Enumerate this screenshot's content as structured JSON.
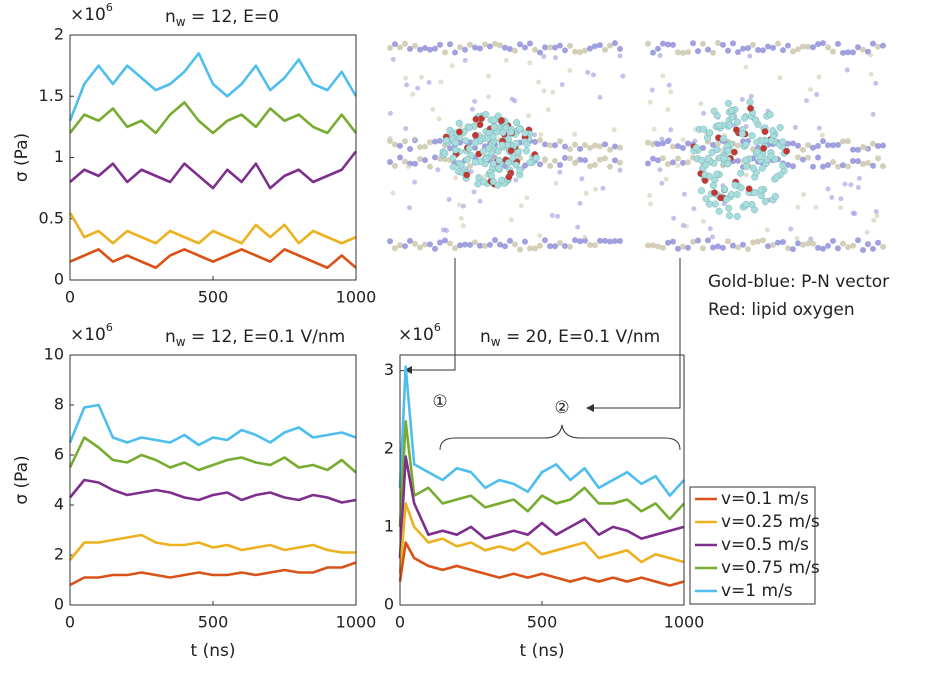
{
  "chart_data": [
    {
      "type": "line",
      "title": [
        "n",
        "w",
        " = 12, E=0"
      ],
      "y_multiplier": [
        "×10",
        "6"
      ],
      "ylabel": "σ (Pa)",
      "x": [
        0,
        50,
        100,
        150,
        200,
        250,
        300,
        350,
        400,
        450,
        500,
        550,
        600,
        650,
        700,
        750,
        800,
        850,
        900,
        950,
        1000
      ],
      "xlim": [
        0,
        1000
      ],
      "xticks": [
        0,
        500,
        1000
      ],
      "ylim": [
        0,
        2
      ],
      "yticks": [
        0,
        0.5,
        1,
        1.5,
        2
      ],
      "series": [
        {
          "color": "#4dbeee",
          "values": [
            1.3,
            1.6,
            1.75,
            1.6,
            1.75,
            1.65,
            1.55,
            1.6,
            1.7,
            1.85,
            1.6,
            1.5,
            1.6,
            1.75,
            1.55,
            1.65,
            1.8,
            1.6,
            1.55,
            1.7,
            1.5
          ]
        },
        {
          "color": "#77ac30",
          "values": [
            1.2,
            1.35,
            1.3,
            1.4,
            1.25,
            1.3,
            1.2,
            1.35,
            1.45,
            1.3,
            1.2,
            1.3,
            1.35,
            1.25,
            1.4,
            1.3,
            1.35,
            1.25,
            1.2,
            1.35,
            1.2
          ]
        },
        {
          "color": "#7e2f8e",
          "values": [
            0.8,
            0.9,
            0.85,
            0.95,
            0.8,
            0.9,
            0.85,
            0.8,
            0.95,
            0.85,
            0.75,
            0.9,
            0.8,
            0.95,
            0.75,
            0.85,
            0.9,
            0.8,
            0.85,
            0.9,
            1.05
          ]
        },
        {
          "color": "#edb120",
          "values": [
            0.55,
            0.35,
            0.4,
            0.3,
            0.4,
            0.35,
            0.3,
            0.4,
            0.35,
            0.3,
            0.4,
            0.35,
            0.3,
            0.45,
            0.35,
            0.45,
            0.3,
            0.4,
            0.35,
            0.3,
            0.35
          ]
        },
        {
          "color": "#d95319",
          "values": [
            0.15,
            0.2,
            0.25,
            0.15,
            0.2,
            0.15,
            0.1,
            0.2,
            0.25,
            0.2,
            0.15,
            0.2,
            0.25,
            0.2,
            0.15,
            0.25,
            0.2,
            0.15,
            0.1,
            0.2,
            0.1
          ]
        }
      ]
    },
    {
      "type": "line",
      "title": [
        "n",
        "w",
        " = 12, E=0.1 V/nm"
      ],
      "y_multiplier": [
        "×10",
        "6"
      ],
      "ylabel": "σ (Pa)",
      "xlabel": "t (ns)",
      "x": [
        0,
        50,
        100,
        150,
        200,
        250,
        300,
        350,
        400,
        450,
        500,
        550,
        600,
        650,
        700,
        750,
        800,
        850,
        900,
        950,
        1000
      ],
      "xlim": [
        0,
        1000
      ],
      "xticks": [
        0,
        500,
        1000
      ],
      "ylim": [
        0,
        10
      ],
      "yticks": [
        0,
        2,
        4,
        6,
        8,
        10
      ],
      "series": [
        {
          "color": "#4dbeee",
          "values": [
            6.5,
            7.9,
            8,
            6.7,
            6.5,
            6.7,
            6.6,
            6.5,
            6.8,
            6.4,
            6.7,
            6.6,
            7.0,
            6.8,
            6.5,
            6.9,
            7.1,
            6.7,
            6.8,
            6.9,
            6.7
          ]
        },
        {
          "color": "#77ac30",
          "values": [
            5.5,
            6.7,
            6.3,
            5.8,
            5.7,
            6.0,
            5.8,
            5.5,
            5.7,
            5.4,
            5.6,
            5.8,
            5.9,
            5.7,
            5.6,
            5.9,
            5.5,
            5.6,
            5.4,
            5.8,
            5.3
          ]
        },
        {
          "color": "#7e2f8e",
          "values": [
            4.3,
            5.0,
            4.9,
            4.6,
            4.4,
            4.5,
            4.6,
            4.5,
            4.3,
            4.2,
            4.4,
            4.5,
            4.2,
            4.4,
            4.5,
            4.3,
            4.2,
            4.4,
            4.3,
            4.1,
            4.2
          ]
        },
        {
          "color": "#edb120",
          "values": [
            1.8,
            2.5,
            2.5,
            2.6,
            2.7,
            2.8,
            2.5,
            2.4,
            2.4,
            2.5,
            2.3,
            2.4,
            2.2,
            2.3,
            2.4,
            2.2,
            2.3,
            2.4,
            2.2,
            2.1,
            2.1
          ]
        },
        {
          "color": "#d95319",
          "values": [
            0.8,
            1.1,
            1.1,
            1.2,
            1.2,
            1.3,
            1.2,
            1.1,
            1.2,
            1.3,
            1.2,
            1.2,
            1.3,
            1.2,
            1.3,
            1.4,
            1.3,
            1.3,
            1.5,
            1.5,
            1.7
          ]
        }
      ]
    },
    {
      "type": "line",
      "title": [
        "n",
        "w",
        " = 20, E=0.1 V/nm"
      ],
      "y_multiplier": [
        "×10",
        "6"
      ],
      "xlabel": "t (ns)",
      "annotations": [
        "①",
        "②"
      ],
      "legend": "right",
      "x": [
        0,
        20,
        50,
        100,
        150,
        200,
        250,
        300,
        350,
        400,
        450,
        500,
        550,
        600,
        650,
        700,
        750,
        800,
        850,
        900,
        950,
        1000
      ],
      "xlim": [
        0,
        1000
      ],
      "xticks": [
        0,
        500,
        1000
      ],
      "ylim": [
        0,
        3.2
      ],
      "yticks": [
        0,
        1,
        2,
        3
      ],
      "series": [
        {
          "name": "v=1 m/s",
          "color": "#4dbeee",
          "values": [
            1.5,
            3.05,
            1.8,
            1.7,
            1.6,
            1.75,
            1.7,
            1.5,
            1.6,
            1.55,
            1.45,
            1.7,
            1.8,
            1.6,
            1.75,
            1.5,
            1.6,
            1.7,
            1.55,
            1.65,
            1.4,
            1.6
          ]
        },
        {
          "name": "v=0.75 m/s",
          "color": "#77ac30",
          "values": [
            1.0,
            2.35,
            1.4,
            1.5,
            1.3,
            1.35,
            1.4,
            1.25,
            1.3,
            1.35,
            1.2,
            1.4,
            1.3,
            1.35,
            1.5,
            1.3,
            1.3,
            1.35,
            1.2,
            1.3,
            1.1,
            1.3
          ]
        },
        {
          "name": "v=0.5 m/s",
          "color": "#7e2f8e",
          "values": [
            0.6,
            1.9,
            1.3,
            0.9,
            0.95,
            0.9,
            1.0,
            0.85,
            0.9,
            0.95,
            0.9,
            1.05,
            0.9,
            1.0,
            1.1,
            0.9,
            1.0,
            0.95,
            0.85,
            0.9,
            0.95,
            1.0
          ]
        },
        {
          "name": "v=0.25 m/s",
          "color": "#edb120",
          "values": [
            0.4,
            1.3,
            1.0,
            0.8,
            0.85,
            0.75,
            0.8,
            0.7,
            0.75,
            0.7,
            0.8,
            0.65,
            0.7,
            0.75,
            0.8,
            0.6,
            0.65,
            0.7,
            0.55,
            0.65,
            0.6,
            0.55
          ]
        },
        {
          "name": "v=0.1 m/s",
          "color": "#d95319",
          "values": [
            0.3,
            0.8,
            0.6,
            0.5,
            0.45,
            0.5,
            0.45,
            0.4,
            0.35,
            0.4,
            0.35,
            0.4,
            0.35,
            0.3,
            0.35,
            0.3,
            0.35,
            0.3,
            0.35,
            0.3,
            0.25,
            0.3
          ]
        }
      ]
    }
  ],
  "figure": {
    "notes": [
      "Gold-blue: P-N vector",
      "Red: lipid oxygen"
    ]
  }
}
